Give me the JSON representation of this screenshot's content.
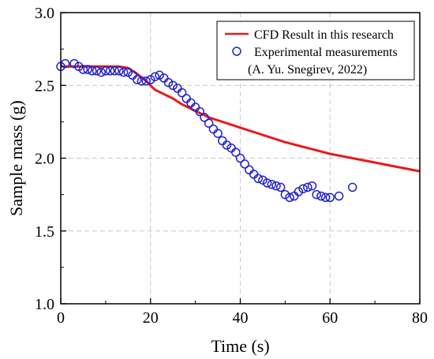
{
  "chart_data": {
    "type": "line",
    "title": "",
    "xlabel": "Time (s)",
    "ylabel": "Sample mass (g)",
    "xlim": [
      0,
      80
    ],
    "ylim": [
      1.0,
      3.0
    ],
    "xticks": [
      "0",
      "20",
      "40",
      "60",
      "80"
    ],
    "yticks": [
      "1.0",
      "1.5",
      "2.0",
      "2.5",
      "3.0"
    ],
    "grid": true,
    "legend_position": "top-right",
    "series": [
      {
        "name": "CFD Result in this research",
        "kind": "line",
        "color": "#e8191b",
        "x": [
          0,
          5,
          10,
          13,
          15,
          17,
          19,
          21,
          23,
          25,
          27,
          29,
          31,
          33,
          35,
          37,
          40,
          45,
          50,
          55,
          60,
          65,
          70,
          75,
          80
        ],
        "y": [
          2.63,
          2.63,
          2.63,
          2.63,
          2.62,
          2.58,
          2.53,
          2.47,
          2.44,
          2.41,
          2.37,
          2.34,
          2.31,
          2.28,
          2.26,
          2.24,
          2.21,
          2.16,
          2.11,
          2.07,
          2.03,
          2.0,
          1.97,
          1.94,
          1.91
        ]
      },
      {
        "name": "Experimental measurements",
        "name_line2": "(A. Yu. Snegirev, 2022)",
        "kind": "scatter",
        "color": "#2323c8",
        "x": [
          0,
          1,
          3,
          4,
          5,
          6,
          7,
          8,
          9,
          10,
          11,
          12,
          13,
          14,
          15,
          16,
          17,
          18,
          19,
          20,
          21,
          22,
          23,
          24,
          25,
          26,
          27,
          28,
          29,
          30,
          31,
          32,
          33,
          34,
          35,
          36,
          37,
          38,
          39,
          40,
          41,
          42,
          43,
          44,
          45,
          46,
          47,
          48,
          49,
          50,
          51,
          52,
          53,
          54,
          55,
          56,
          57,
          58,
          59,
          60,
          62,
          65
        ],
        "y": [
          2.63,
          2.65,
          2.65,
          2.63,
          2.61,
          2.61,
          2.6,
          2.6,
          2.59,
          2.6,
          2.6,
          2.6,
          2.6,
          2.59,
          2.59,
          2.57,
          2.54,
          2.53,
          2.53,
          2.54,
          2.56,
          2.57,
          2.55,
          2.52,
          2.5,
          2.48,
          2.45,
          2.41,
          2.38,
          2.35,
          2.32,
          2.28,
          2.24,
          2.2,
          2.17,
          2.12,
          2.09,
          2.07,
          2.04,
          2.0,
          1.96,
          1.92,
          1.89,
          1.86,
          1.85,
          1.83,
          1.82,
          1.81,
          1.8,
          1.75,
          1.73,
          1.74,
          1.77,
          1.79,
          1.8,
          1.81,
          1.75,
          1.74,
          1.73,
          1.73,
          1.74,
          1.8
        ]
      }
    ]
  }
}
